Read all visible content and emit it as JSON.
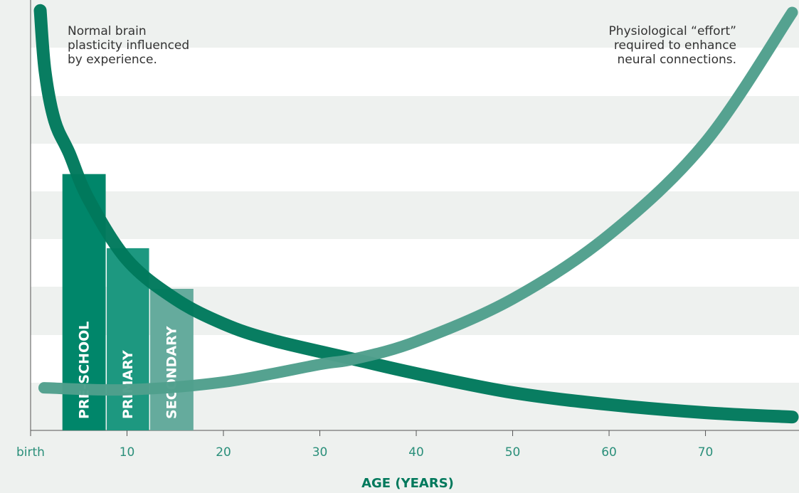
{
  "chart_data": {
    "type": "histogram-lines",
    "xlabel": "AGE (YEARS)",
    "xlim": [
      0,
      79.7
    ],
    "ylim": [
      0,
      9
    ],
    "xticks": [
      {
        "value": 0,
        "label": "birth"
      },
      10,
      20,
      30,
      40,
      50,
      60,
      70
    ],
    "bins": [
      3.3,
      7.9,
      12.4,
      17
    ],
    "bars": {
      "labels": [
        "PRE-SCHOOL",
        "PRIMARY",
        "SECONDARY"
      ],
      "values": [
        5.36,
        3.81,
        2.96
      ],
      "colors": [
        "#00866a",
        "#1d9880",
        "#65ab9d"
      ]
    },
    "series": [
      {
        "color": "#00795c",
        "x": [
          1,
          1.5,
          2.5,
          4,
          6,
          10,
          15,
          20,
          25,
          33.5,
          40,
          50,
          60,
          70,
          79
        ],
        "values": [
          8.78,
          7.51,
          6.47,
          5.8,
          4.84,
          3.57,
          2.75,
          2.23,
          1.89,
          1.49,
          1.19,
          0.79,
          0.54,
          0.37,
          0.28
        ]
      },
      {
        "color": "#4f9f8c",
        "x": [
          1.4,
          10,
          20,
          30,
          33.5,
          40,
          50,
          60,
          70,
          79
        ],
        "values": [
          0.89,
          0.85,
          1.01,
          1.38,
          1.49,
          1.86,
          2.75,
          4.09,
          6.03,
          8.74
        ]
      }
    ],
    "annotations": [
      {
        "lines": [
          "Normal brain",
          "plasticity influenced",
          "by experience."
        ]
      },
      {
        "lines": [
          "Physiological “effort”",
          "required to enhance",
          "neural connections."
        ]
      }
    ]
  }
}
